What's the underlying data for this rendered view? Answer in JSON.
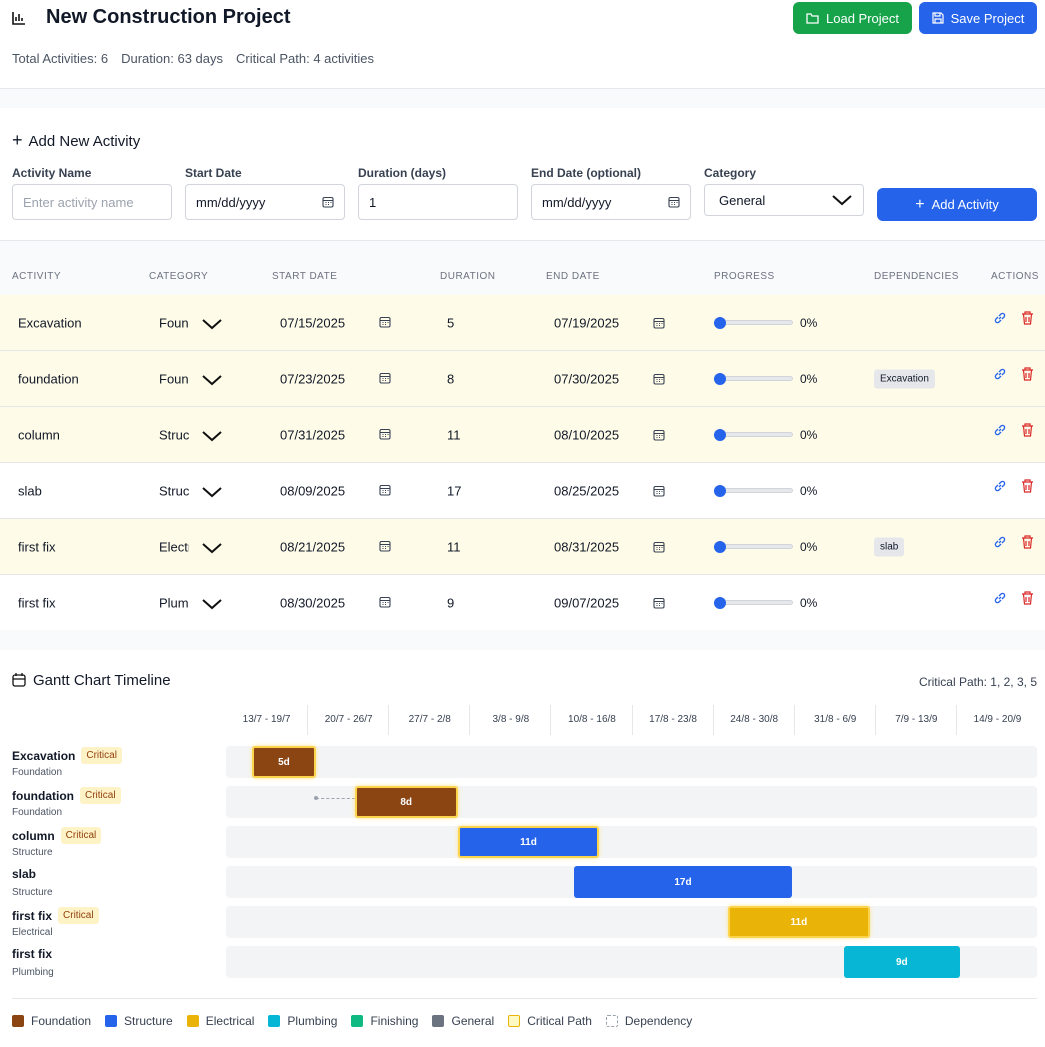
{
  "header": {
    "title": "New Construction Project",
    "stats": [
      "Total Activities: 6",
      "Duration: 63 days",
      "Critical Path: 4 activities"
    ],
    "buttons": [
      "Load Project",
      "Save Project"
    ]
  },
  "form": {
    "title": "Add New Activity",
    "fields": [
      {
        "label": "Activity Name",
        "placeholder": "Enter activity name"
      },
      {
        "label": "Start Date",
        "value": "mm/dd/yyyy"
      },
      {
        "label": "Duration (days)",
        "value": "1"
      },
      {
        "label": "End Date (optional)",
        "value": "mm/dd/yyyy"
      },
      {
        "label": "Category",
        "value": "General"
      }
    ],
    "button": "Add Activity"
  },
  "table": {
    "columns": [
      "ACTIVITY",
      "CATEGORY",
      "START DATE",
      "DURATION",
      "END DATE",
      "PROGRESS",
      "DEPENDENCIES",
      "ACTIONS"
    ],
    "rows": [
      {
        "name": "Excavation",
        "category": "Foundation",
        "start": "07/15/2025",
        "duration": 5,
        "end": "07/19/2025",
        "progress": "0%",
        "critical": true
      },
      {
        "name": "foundation",
        "category": "Foundation",
        "start": "07/23/2025",
        "duration": 8,
        "end": "07/30/2025",
        "progress": "0%",
        "dependency": "Excavation",
        "critical": true
      },
      {
        "name": "column",
        "category": "Structure",
        "start": "07/31/2025",
        "duration": 11,
        "end": "08/10/2025",
        "progress": "0%",
        "critical": true
      },
      {
        "name": "slab",
        "category": "Structure",
        "start": "08/09/2025",
        "duration": 17,
        "end": "08/25/2025",
        "progress": "0%",
        "critical": false
      },
      {
        "name": "first fix",
        "category": "Electrical",
        "start": "08/21/2025",
        "duration": 11,
        "end": "08/31/2025",
        "progress": "0%",
        "dependency": "slab",
        "critical": true
      },
      {
        "name": "first fix",
        "category": "Plumbing",
        "start": "08/30/2025",
        "duration": 9,
        "end": "09/07/2025",
        "progress": "0%",
        "critical": false
      }
    ]
  },
  "gantt": {
    "title": "Gantt Chart Timeline",
    "critical_path": "Critical Path: 1, 2, 3, 5",
    "weeks": [
      "13/7 - 19/7",
      "20/7 - 26/7",
      "27/7 - 2/8",
      "3/8 - 9/8",
      "10/8 - 16/8",
      "17/8 - 23/8",
      "24/8 - 30/8",
      "31/8 - 6/9",
      "7/9 - 13/9",
      "14/9 - 20/9"
    ],
    "rows": [
      {
        "name": "Excavation",
        "category": "Foundation",
        "badge": "Critical",
        "bar": "5d"
      },
      {
        "name": "foundation",
        "category": "Foundation",
        "badge": "Critical",
        "bar": "8d"
      },
      {
        "name": "column",
        "category": "Structure",
        "badge": "Critical",
        "bar": "11d"
      },
      {
        "name": "slab",
        "category": "Structure",
        "bar": "17d"
      },
      {
        "name": "first fix",
        "category": "Electrical",
        "badge": "Critical",
        "bar": "11d"
      },
      {
        "name": "first fix",
        "category": "Plumbing",
        "bar": "9d"
      }
    ],
    "legend": [
      {
        "label": "Foundation",
        "color": "#8b4513"
      },
      {
        "label": "Structure",
        "color": "#2563eb"
      },
      {
        "label": "Electrical",
        "color": "#eab308"
      },
      {
        "label": "Plumbing",
        "color": "#06b6d4"
      },
      {
        "label": "Finishing",
        "color": "#10b981"
      },
      {
        "label": "General",
        "color": "#6b7280"
      },
      {
        "label": "Critical Path",
        "color": "#fef9c3",
        "border": "#eab308"
      },
      {
        "label": "Dependency",
        "color": "#ffffff",
        "border": "#9ca3af",
        "dashed": true
      }
    ]
  }
}
